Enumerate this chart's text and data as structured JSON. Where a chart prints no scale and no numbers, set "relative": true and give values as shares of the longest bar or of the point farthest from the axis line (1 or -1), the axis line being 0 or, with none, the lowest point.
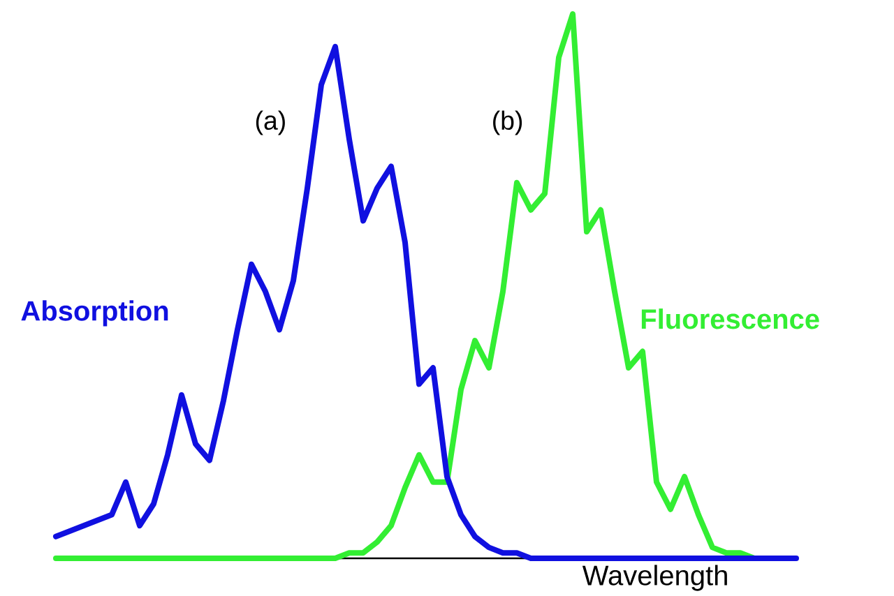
{
  "chart_data": {
    "type": "line",
    "relative": true,
    "xlabel": "Wavelength",
    "marker": "none",
    "line_style": "solid",
    "annotations": [
      "(a)",
      "(b)"
    ],
    "categories": [
      null,
      null,
      null,
      null,
      null,
      null,
      null,
      null,
      null,
      null,
      null,
      null,
      null,
      null,
      null,
      null,
      null,
      null,
      null,
      null,
      null,
      null,
      null,
      null,
      null,
      null,
      null,
      null,
      null,
      null,
      null,
      null,
      null,
      null,
      null,
      null,
      null,
      null,
      null,
      null,
      null,
      null,
      null,
      null,
      null,
      null,
      null,
      null,
      null,
      null,
      null,
      null,
      null,
      null
    ],
    "series": [
      {
        "name": "Absorption",
        "color": "#1010e0",
        "values": [
          0.04,
          0.05,
          0.06,
          0.07,
          0.08,
          0.14,
          0.06,
          0.1,
          0.19,
          0.3,
          0.21,
          0.18,
          0.29,
          0.42,
          0.54,
          0.49,
          0.42,
          0.51,
          0.68,
          0.87,
          0.94,
          0.77,
          0.62,
          0.68,
          0.72,
          0.58,
          0.32,
          0.35,
          0.15,
          0.08,
          0.04,
          0.02,
          0.01,
          0.01,
          0,
          0,
          0,
          0,
          0,
          0,
          0,
          0,
          0,
          0,
          0,
          0,
          0,
          0,
          0,
          0,
          0,
          0,
          0,
          0
        ]
      },
      {
        "name": "Fluorescence",
        "color": "#33ee33",
        "values": [
          0,
          0,
          0,
          0,
          0,
          0,
          0,
          0,
          0,
          0,
          0,
          0,
          0,
          0,
          0,
          0,
          0,
          0,
          0,
          0,
          0,
          0.01,
          0.01,
          0.03,
          0.06,
          0.13,
          0.19,
          0.14,
          0.14,
          0.31,
          0.4,
          0.35,
          0.49,
          0.69,
          0.64,
          0.67,
          0.92,
          1,
          0.6,
          0.64,
          0.49,
          0.35,
          0.38,
          0.14,
          0.09,
          0.15,
          0.08,
          0.02,
          0.01,
          0.01,
          0,
          0,
          null,
          null
        ]
      }
    ]
  }
}
